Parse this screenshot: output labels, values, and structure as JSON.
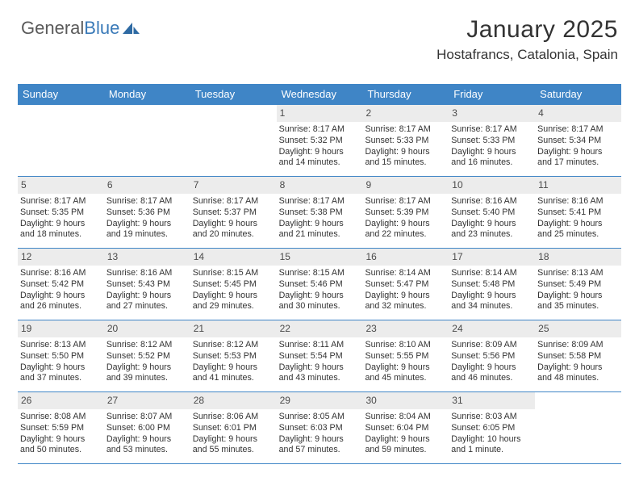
{
  "colors": {
    "accent": "#3f85c6",
    "logo_blue": "#3a7ab8",
    "header_bg": "#ececec",
    "text": "#333333",
    "logo_gray": "#5a5a5a",
    "background": "#ffffff"
  },
  "logo": {
    "part1": "General",
    "part2": "Blue"
  },
  "title": "January 2025",
  "location": "Hostafrancs, Catalonia, Spain",
  "days_of_week": [
    "Sunday",
    "Monday",
    "Tuesday",
    "Wednesday",
    "Thursday",
    "Friday",
    "Saturday"
  ],
  "calendar": {
    "type": "table",
    "first_weekday_index": 3,
    "num_days": 31,
    "days": [
      {
        "n": 1,
        "sunrise": "8:17 AM",
        "sunset": "5:32 PM",
        "daylight": "9 hours and 14 minutes."
      },
      {
        "n": 2,
        "sunrise": "8:17 AM",
        "sunset": "5:33 PM",
        "daylight": "9 hours and 15 minutes."
      },
      {
        "n": 3,
        "sunrise": "8:17 AM",
        "sunset": "5:33 PM",
        "daylight": "9 hours and 16 minutes."
      },
      {
        "n": 4,
        "sunrise": "8:17 AM",
        "sunset": "5:34 PM",
        "daylight": "9 hours and 17 minutes."
      },
      {
        "n": 5,
        "sunrise": "8:17 AM",
        "sunset": "5:35 PM",
        "daylight": "9 hours and 18 minutes."
      },
      {
        "n": 6,
        "sunrise": "8:17 AM",
        "sunset": "5:36 PM",
        "daylight": "9 hours and 19 minutes."
      },
      {
        "n": 7,
        "sunrise": "8:17 AM",
        "sunset": "5:37 PM",
        "daylight": "9 hours and 20 minutes."
      },
      {
        "n": 8,
        "sunrise": "8:17 AM",
        "sunset": "5:38 PM",
        "daylight": "9 hours and 21 minutes."
      },
      {
        "n": 9,
        "sunrise": "8:17 AM",
        "sunset": "5:39 PM",
        "daylight": "9 hours and 22 minutes."
      },
      {
        "n": 10,
        "sunrise": "8:16 AM",
        "sunset": "5:40 PM",
        "daylight": "9 hours and 23 minutes."
      },
      {
        "n": 11,
        "sunrise": "8:16 AM",
        "sunset": "5:41 PM",
        "daylight": "9 hours and 25 minutes."
      },
      {
        "n": 12,
        "sunrise": "8:16 AM",
        "sunset": "5:42 PM",
        "daylight": "9 hours and 26 minutes."
      },
      {
        "n": 13,
        "sunrise": "8:16 AM",
        "sunset": "5:43 PM",
        "daylight": "9 hours and 27 minutes."
      },
      {
        "n": 14,
        "sunrise": "8:15 AM",
        "sunset": "5:45 PM",
        "daylight": "9 hours and 29 minutes."
      },
      {
        "n": 15,
        "sunrise": "8:15 AM",
        "sunset": "5:46 PM",
        "daylight": "9 hours and 30 minutes."
      },
      {
        "n": 16,
        "sunrise": "8:14 AM",
        "sunset": "5:47 PM",
        "daylight": "9 hours and 32 minutes."
      },
      {
        "n": 17,
        "sunrise": "8:14 AM",
        "sunset": "5:48 PM",
        "daylight": "9 hours and 34 minutes."
      },
      {
        "n": 18,
        "sunrise": "8:13 AM",
        "sunset": "5:49 PM",
        "daylight": "9 hours and 35 minutes."
      },
      {
        "n": 19,
        "sunrise": "8:13 AM",
        "sunset": "5:50 PM",
        "daylight": "9 hours and 37 minutes."
      },
      {
        "n": 20,
        "sunrise": "8:12 AM",
        "sunset": "5:52 PM",
        "daylight": "9 hours and 39 minutes."
      },
      {
        "n": 21,
        "sunrise": "8:12 AM",
        "sunset": "5:53 PM",
        "daylight": "9 hours and 41 minutes."
      },
      {
        "n": 22,
        "sunrise": "8:11 AM",
        "sunset": "5:54 PM",
        "daylight": "9 hours and 43 minutes."
      },
      {
        "n": 23,
        "sunrise": "8:10 AM",
        "sunset": "5:55 PM",
        "daylight": "9 hours and 45 minutes."
      },
      {
        "n": 24,
        "sunrise": "8:09 AM",
        "sunset": "5:56 PM",
        "daylight": "9 hours and 46 minutes."
      },
      {
        "n": 25,
        "sunrise": "8:09 AM",
        "sunset": "5:58 PM",
        "daylight": "9 hours and 48 minutes."
      },
      {
        "n": 26,
        "sunrise": "8:08 AM",
        "sunset": "5:59 PM",
        "daylight": "9 hours and 50 minutes."
      },
      {
        "n": 27,
        "sunrise": "8:07 AM",
        "sunset": "6:00 PM",
        "daylight": "9 hours and 53 minutes."
      },
      {
        "n": 28,
        "sunrise": "8:06 AM",
        "sunset": "6:01 PM",
        "daylight": "9 hours and 55 minutes."
      },
      {
        "n": 29,
        "sunrise": "8:05 AM",
        "sunset": "6:03 PM",
        "daylight": "9 hours and 57 minutes."
      },
      {
        "n": 30,
        "sunrise": "8:04 AM",
        "sunset": "6:04 PM",
        "daylight": "9 hours and 59 minutes."
      },
      {
        "n": 31,
        "sunrise": "8:03 AM",
        "sunset": "6:05 PM",
        "daylight": "10 hours and 1 minute."
      }
    ],
    "labels": {
      "sunrise": "Sunrise: ",
      "sunset": "Sunset: ",
      "daylight": "Daylight: "
    }
  }
}
